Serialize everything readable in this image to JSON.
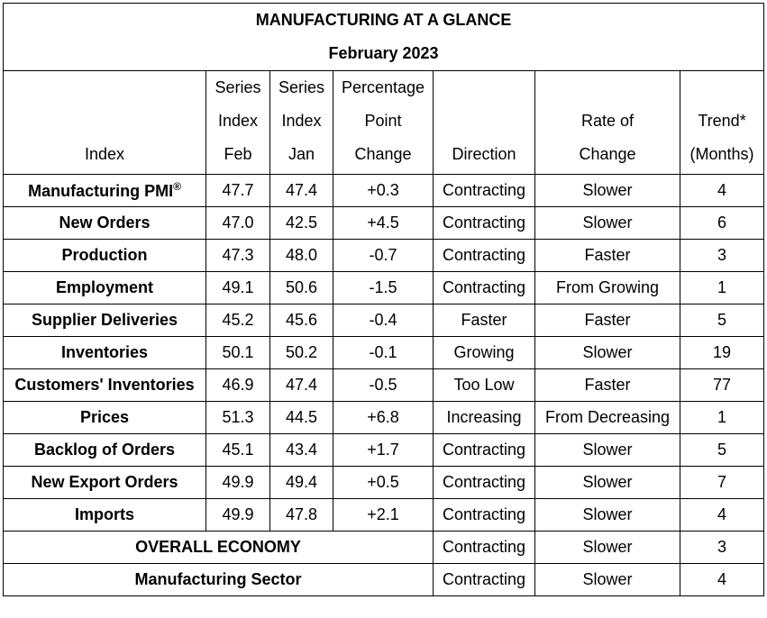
{
  "title": "MANUFACTURING AT A GLANCE",
  "subtitle": "February 2023",
  "headers": {
    "index": "Index",
    "feb": [
      "Series",
      "Index",
      "Feb"
    ],
    "jan": [
      "Series",
      "Index",
      "Jan"
    ],
    "change": [
      "Percentage",
      "Point",
      "Change"
    ],
    "direction": "Direction",
    "rate": [
      "Rate of",
      "Change"
    ],
    "trend": [
      "Trend*",
      "(Months)"
    ]
  },
  "rows": [
    {
      "name": "Manufacturing PMI",
      "sup": "®",
      "feb": "47.7",
      "jan": "47.4",
      "change": "+0.3",
      "direction": "Contracting",
      "rate": "Slower",
      "trend": "4"
    },
    {
      "name": "New Orders",
      "feb": "47.0",
      "jan": "42.5",
      "change": "+4.5",
      "direction": "Contracting",
      "rate": "Slower",
      "trend": "6"
    },
    {
      "name": "Production",
      "feb": "47.3",
      "jan": "48.0",
      "change": "-0.7",
      "direction": "Contracting",
      "rate": "Faster",
      "trend": "3"
    },
    {
      "name": "Employment",
      "feb": "49.1",
      "jan": "50.6",
      "change": "-1.5",
      "direction": "Contracting",
      "rate": "From Growing",
      "trend": "1"
    },
    {
      "name": "Supplier Deliveries",
      "feb": "45.2",
      "jan": "45.6",
      "change": "-0.4",
      "direction": "Faster",
      "rate": "Faster",
      "trend": "5"
    },
    {
      "name": "Inventories",
      "feb": "50.1",
      "jan": "50.2",
      "change": "-0.1",
      "direction": "Growing",
      "rate": "Slower",
      "trend": "19"
    },
    {
      "name": "Customers' Inventories",
      "feb": "46.9",
      "jan": "47.4",
      "change": "-0.5",
      "direction": "Too Low",
      "rate": "Faster",
      "trend": "77"
    },
    {
      "name": "Prices",
      "feb": "51.3",
      "jan": "44.5",
      "change": "+6.8",
      "direction": "Increasing",
      "rate": "From Decreasing",
      "trend": "1"
    },
    {
      "name": "Backlog of Orders",
      "feb": "45.1",
      "jan": "43.4",
      "change": "+1.7",
      "direction": "Contracting",
      "rate": "Slower",
      "trend": "5"
    },
    {
      "name": "New Export Orders",
      "feb": "49.9",
      "jan": "49.4",
      "change": "+0.5",
      "direction": "Contracting",
      "rate": "Slower",
      "trend": "7"
    },
    {
      "name": "Imports",
      "feb": "49.9",
      "jan": "47.8",
      "change": "+2.1",
      "direction": "Contracting",
      "rate": "Slower",
      "trend": "4"
    }
  ],
  "summary": [
    {
      "name": "OVERALL ECONOMY",
      "direction": "Contracting",
      "rate": "Slower",
      "trend": "3"
    },
    {
      "name": "Manufacturing Sector",
      "direction": "Contracting",
      "rate": "Slower",
      "trend": "4"
    }
  ]
}
